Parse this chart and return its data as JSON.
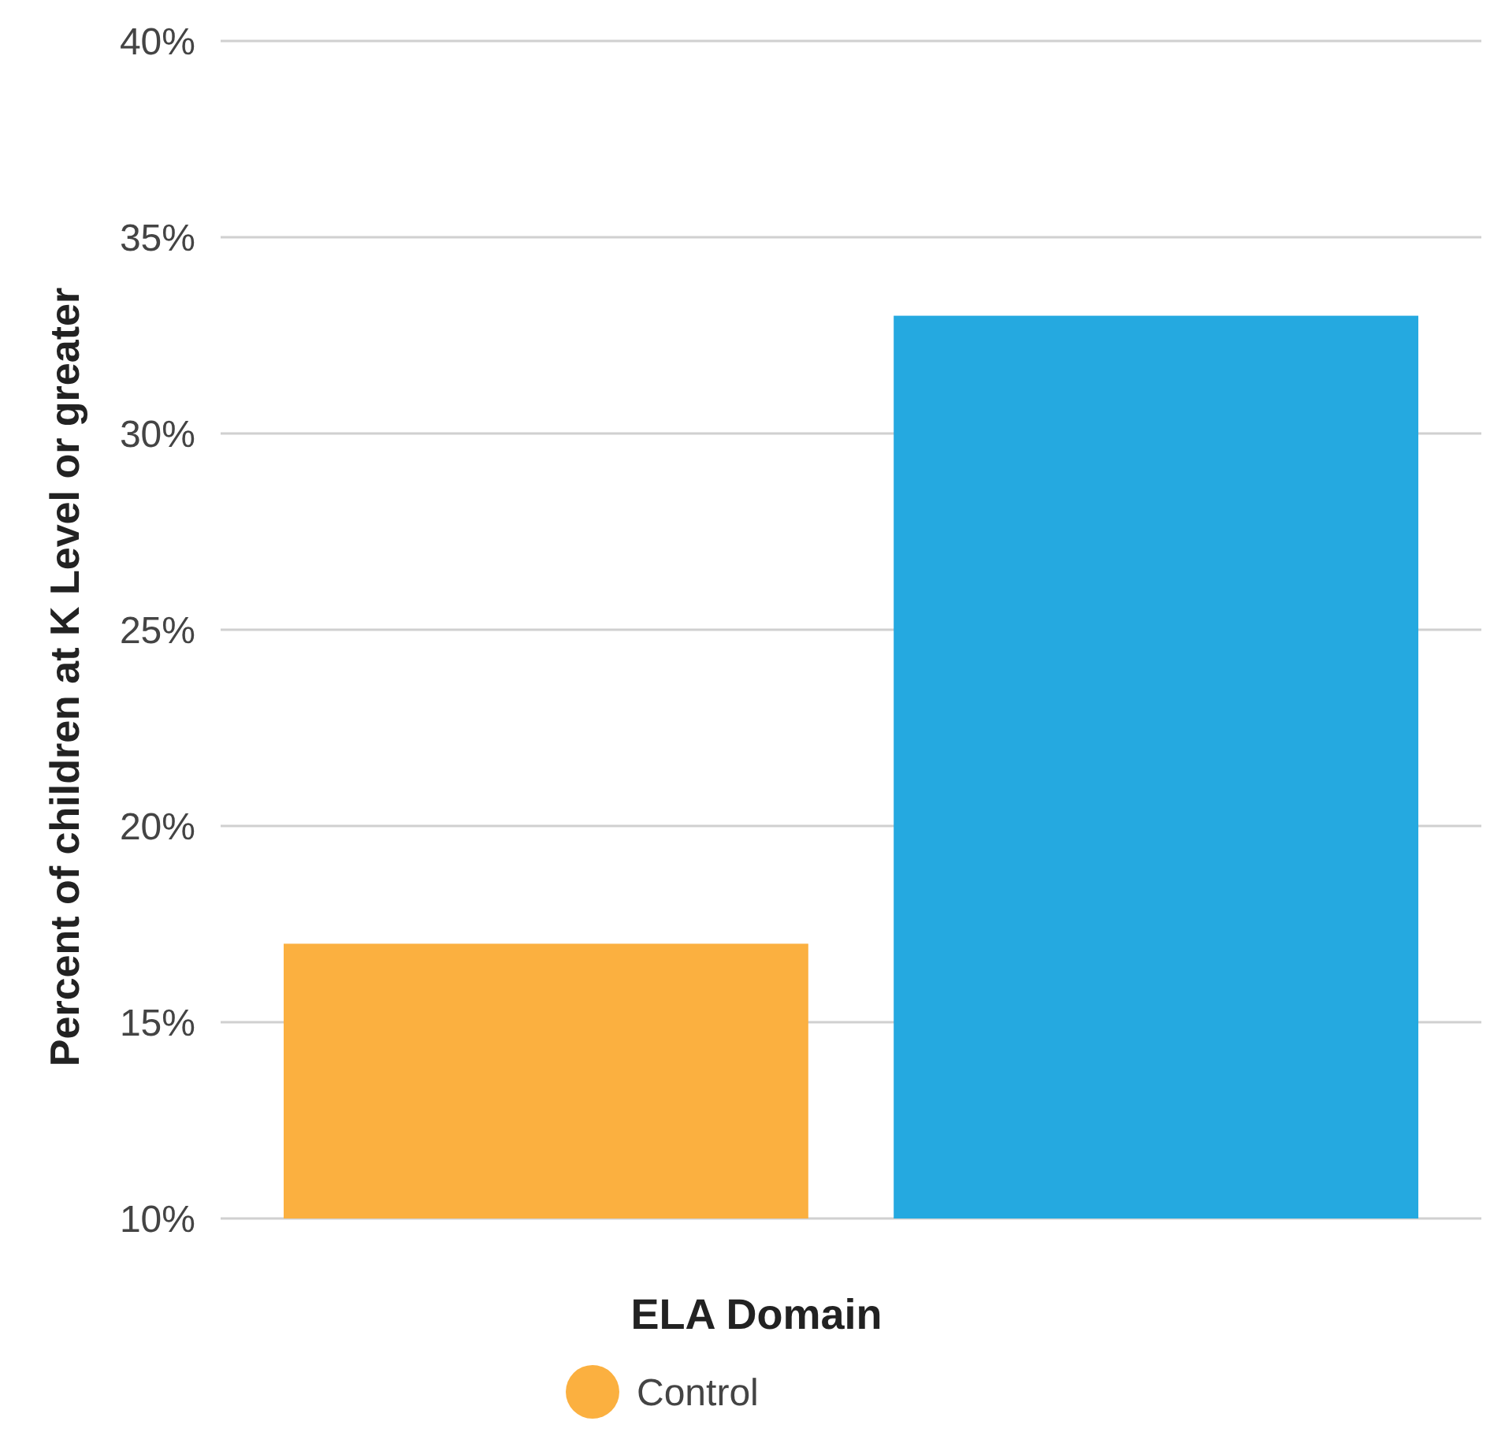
{
  "chart_data": {
    "type": "bar",
    "xlabel": "ELA Domain",
    "ylabel": "Percent of children at K Level or greater",
    "categories": [
      null
    ],
    "series": [
      {
        "name": "Control",
        "color": "#fbb040",
        "values": [
          17
        ]
      },
      {
        "color": "#25a9e0",
        "values": [
          33
        ]
      }
    ],
    "ylim": [
      10,
      40
    ],
    "yticks": [
      {
        "value": 10,
        "label": "10%"
      },
      {
        "value": 15,
        "label": "15%"
      },
      {
        "value": 20,
        "label": "20%"
      },
      {
        "value": 25,
        "label": "25%"
      },
      {
        "value": 30,
        "label": "30%"
      },
      {
        "value": 35,
        "label": "35%"
      },
      {
        "value": 40,
        "label": "40%"
      }
    ],
    "grid": "y",
    "legend": "bottom"
  }
}
